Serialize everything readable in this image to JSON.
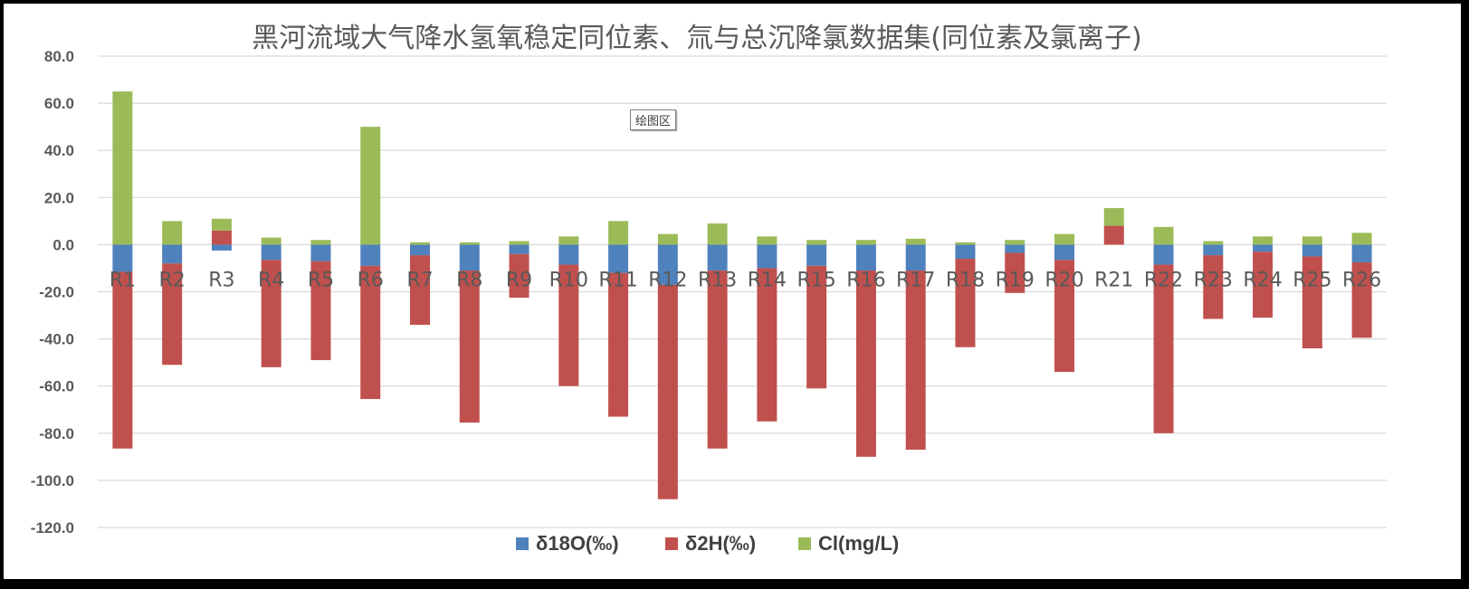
{
  "chart_data": {
    "type": "bar",
    "stacked": true,
    "title": "黑河流域大气降水氢氧稳定同位素、氚与总沉降氯数据集(同位素及氯离子)",
    "categories": [
      "R1",
      "R2",
      "R3",
      "R4",
      "R5",
      "R6",
      "R7",
      "R8",
      "R9",
      "R10",
      "R11",
      "R12",
      "R13",
      "R14",
      "R15",
      "R16",
      "R17",
      "R18",
      "R19",
      "R20",
      "R21",
      "R22",
      "R23",
      "R24",
      "R25",
      "R26"
    ],
    "series": [
      {
        "name": "δ18O(‰)",
        "color": "#4f81bd",
        "values": [
          -11.5,
          -8,
          -2.5,
          -6.5,
          -7,
          -9,
          -4.5,
          -11,
          -4,
          -8.5,
          -12,
          -17,
          -11,
          -10,
          -9,
          -11,
          -11,
          -6,
          -3.5,
          -6.5,
          0,
          -8.5,
          -4.5,
          -3,
          -5,
          -7.5
        ]
      },
      {
        "name": "δ2H(‰)",
        "color": "#c0504d",
        "values": [
          -75,
          -43,
          6,
          -45.5,
          -42,
          -56.5,
          -29.5,
          -64.5,
          -18.5,
          -51.5,
          -61,
          -91,
          -75.5,
          -65,
          -52,
          -79,
          -76,
          -37.5,
          -17,
          -47.5,
          8,
          -71.5,
          -27,
          -28,
          -39,
          -32
        ]
      },
      {
        "name": "Cl(mg/L)",
        "color": "#9bbb59",
        "values": [
          65,
          10,
          5,
          3,
          2,
          50,
          1,
          1,
          1.5,
          3.5,
          10,
          4.5,
          9,
          3.5,
          2,
          2,
          2.5,
          1,
          2,
          4.5,
          7.5,
          7.5,
          1.5,
          3.5,
          3.5,
          5
        ]
      }
    ],
    "ylim": [
      -120,
      80
    ],
    "yticks": [
      "80.0",
      "60.0",
      "40.0",
      "20.0",
      "0.0",
      "-20.0",
      "-40.0",
      "-60.0",
      "-80.0",
      "-100.0",
      "-120.0"
    ],
    "grid": true,
    "legend_position": "bottom"
  },
  "plot_area_tag": "绘图区"
}
